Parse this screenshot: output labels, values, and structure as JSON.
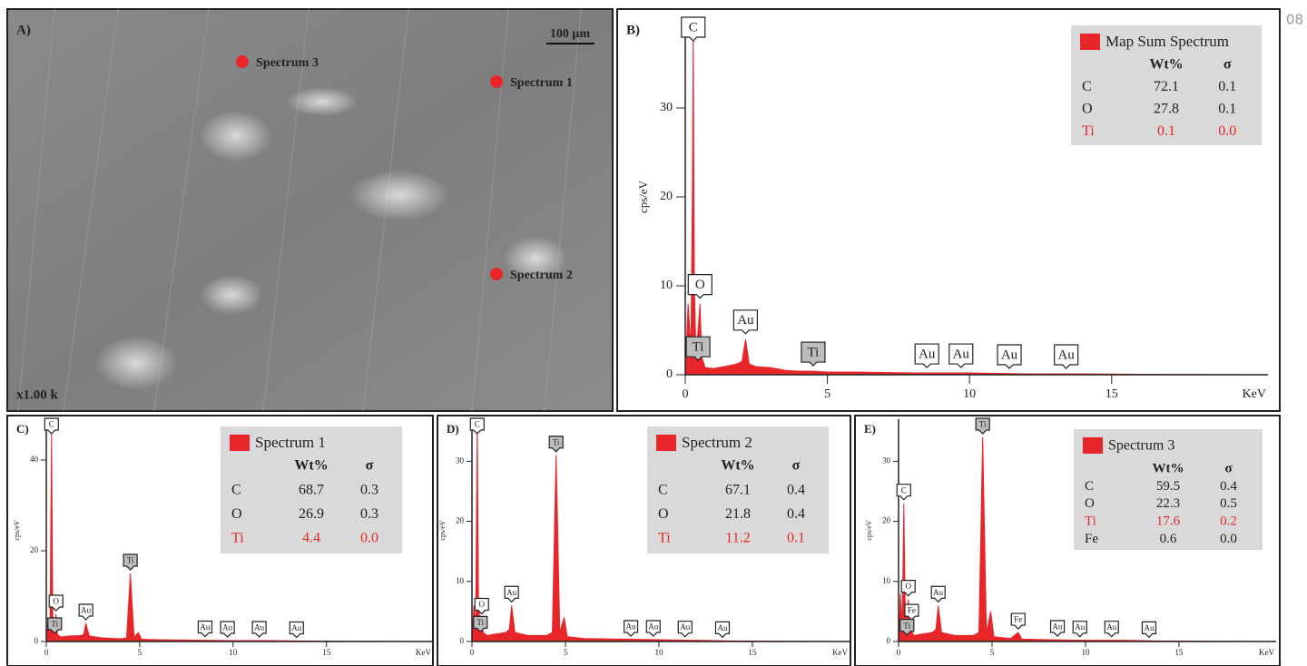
{
  "page_number": "| 08",
  "sem_image": {
    "label": "A)",
    "scale_bar": "100 µm",
    "magnification": "x1.00 k",
    "points": [
      "Spectrum 3",
      "Spectrum 1",
      "Spectrum 2"
    ]
  },
  "chart_data": [
    {
      "type": "area",
      "panel_label": "B)",
      "y_label": "cps/eV",
      "x_label": "KeV",
      "x": [
        0,
        0.1,
        0.2,
        0.25,
        0.28,
        0.32,
        0.38,
        0.45,
        0.52,
        0.58,
        0.7,
        1.0,
        1.5,
        1.8,
        2.0,
        2.12,
        2.25,
        2.5,
        3.0,
        3.5,
        4.0,
        4.5,
        5,
        6,
        8,
        10,
        12,
        14,
        16,
        18,
        20
      ],
      "series": [
        {
          "name": "Map Sum Spectrum",
          "color": "#e8262a",
          "values": [
            0,
            8,
            3,
            20,
            38,
            10,
            2,
            5,
            8,
            2,
            0.8,
            0.7,
            1.0,
            1.2,
            1.5,
            4,
            1.2,
            0.9,
            0.8,
            0.5,
            0.4,
            0.4,
            0.3,
            0.3,
            0.2,
            0.2,
            0.1,
            0.1,
            0.05,
            0.02,
            0
          ]
        }
      ],
      "xlim": [
        0,
        20.5
      ],
      "ylim": [
        0,
        40
      ],
      "xticks": [
        0,
        5,
        10,
        15
      ],
      "yticks": [
        0,
        10,
        20,
        30
      ],
      "annotations": [
        {
          "text": "C",
          "x": 0.28,
          "y": 38,
          "fill": "#ffffff"
        },
        {
          "text": "O",
          "x": 0.52,
          "y": 8,
          "fill": "#ffffff"
        },
        {
          "text": "Ti",
          "x": 0.45,
          "y": 1,
          "fill": "#bdbdbd"
        },
        {
          "text": "Au",
          "x": 2.12,
          "y": 4,
          "fill": "#ffffff"
        },
        {
          "text": "Ti",
          "x": 4.5,
          "y": 0.4,
          "fill": "#bdbdbd"
        },
        {
          "text": "Au",
          "x": 8.5,
          "y": 0.2,
          "fill": "#ffffff"
        },
        {
          "text": "Au",
          "x": 9.7,
          "y": 0.2,
          "fill": "#ffffff"
        },
        {
          "text": "Au",
          "x": 11.4,
          "y": 0.1,
          "fill": "#ffffff"
        },
        {
          "text": "Au",
          "x": 13.4,
          "y": 0.1,
          "fill": "#ffffff"
        }
      ],
      "table": {
        "columns": [
          "",
          "Wt%",
          "σ"
        ],
        "rows": [
          {
            "cells": [
              "C",
              "72.1",
              "0.1"
            ],
            "color": "#222222"
          },
          {
            "cells": [
              "O",
              "27.8",
              "0.1"
            ],
            "color": "#222222"
          },
          {
            "cells": [
              "Ti",
              "0.1",
              "0.0"
            ],
            "color": "#e8262a"
          }
        ]
      }
    },
    {
      "type": "area",
      "panel_label": "C)",
      "y_label": "cps/eV",
      "x_label": "KeV",
      "x": [
        0,
        0.1,
        0.2,
        0.28,
        0.35,
        0.45,
        0.52,
        0.6,
        0.8,
        1.2,
        1.8,
        2.0,
        2.12,
        2.3,
        3,
        4,
        4.3,
        4.5,
        4.7,
        4.93,
        5.1,
        6,
        8,
        10,
        12,
        14,
        16,
        18,
        20
      ],
      "series": [
        {
          "name": "Spectrum 1",
          "color": "#e8262a",
          "values": [
            0,
            5,
            2,
            46,
            5,
            3,
            6,
            1.5,
            1,
            1.2,
            1.3,
            1.5,
            4,
            1.2,
            0.8,
            0.6,
            0.8,
            15,
            0.9,
            2,
            0.5,
            0.4,
            0.3,
            0.2,
            0.2,
            0.1,
            0.05,
            0.02,
            0
          ]
        }
      ],
      "xlim": [
        0,
        20.7
      ],
      "ylim": [
        0,
        49
      ],
      "xticks": [
        0,
        5,
        10,
        15
      ],
      "yticks": [
        0,
        20,
        40
      ],
      "annotations": [
        {
          "text": "C",
          "x": 0.28,
          "y": 46,
          "fill": "#ffffff"
        },
        {
          "text": "O",
          "x": 0.52,
          "y": 6,
          "fill": "#ffffff"
        },
        {
          "text": "Ti",
          "x": 0.45,
          "y": 1,
          "fill": "#bdbdbd"
        },
        {
          "text": "Au",
          "x": 2.12,
          "y": 4,
          "fill": "#ffffff"
        },
        {
          "text": "Ti",
          "x": 4.5,
          "y": 15,
          "fill": "#bdbdbd"
        },
        {
          "text": "Au",
          "x": 8.5,
          "y": 0.3,
          "fill": "#ffffff"
        },
        {
          "text": "Au",
          "x": 9.7,
          "y": 0.2,
          "fill": "#ffffff"
        },
        {
          "text": "Au",
          "x": 11.4,
          "y": 0.2,
          "fill": "#ffffff"
        },
        {
          "text": "Au",
          "x": 13.4,
          "y": 0.1,
          "fill": "#ffffff"
        }
      ],
      "table": {
        "columns": [
          "",
          "Wt%",
          "σ"
        ],
        "rows": [
          {
            "cells": [
              "C",
              "68.7",
              "0.3"
            ],
            "color": "#222222"
          },
          {
            "cells": [
              "O",
              "26.9",
              "0.3"
            ],
            "color": "#222222"
          },
          {
            "cells": [
              "Ti",
              "4.4",
              "0.0"
            ],
            "color": "#e8262a"
          }
        ]
      }
    },
    {
      "type": "area",
      "panel_label": "D)",
      "y_label": "cps/eV",
      "x_label": "KeV",
      "x": [
        0,
        0.1,
        0.2,
        0.28,
        0.35,
        0.45,
        0.52,
        0.6,
        0.8,
        1.2,
        1.8,
        2.0,
        2.12,
        2.3,
        3,
        4,
        4.3,
        4.5,
        4.7,
        4.93,
        5.1,
        6,
        8,
        10,
        12,
        14,
        16,
        18,
        20
      ],
      "series": [
        {
          "name": "Spectrum 2",
          "color": "#e8262a",
          "values": [
            0,
            6,
            3,
            36,
            6,
            3,
            4,
            1.5,
            1,
            1.2,
            1.5,
            2,
            6,
            1.5,
            1,
            1,
            1.5,
            31,
            1.5,
            4,
            0.8,
            0.5,
            0.4,
            0.3,
            0.2,
            0.1,
            0.05,
            0.02,
            0
          ]
        }
      ],
      "xlim": [
        0,
        20.2
      ],
      "ylim": [
        0,
        37
      ],
      "xticks": [
        0,
        5,
        10,
        15
      ],
      "yticks": [
        0,
        10,
        20,
        30
      ],
      "annotations": [
        {
          "text": "C",
          "x": 0.28,
          "y": 36,
          "fill": "#ffffff"
        },
        {
          "text": "O",
          "x": 0.52,
          "y": 4,
          "fill": "#ffffff"
        },
        {
          "text": "Ti",
          "x": 0.45,
          "y": 1,
          "fill": "#bdbdbd"
        },
        {
          "text": "Au",
          "x": 2.12,
          "y": 6,
          "fill": "#ffffff"
        },
        {
          "text": "Ti",
          "x": 4.5,
          "y": 31,
          "fill": "#bdbdbd"
        },
        {
          "text": "Au",
          "x": 8.5,
          "y": 0.3,
          "fill": "#ffffff"
        },
        {
          "text": "Au",
          "x": 9.7,
          "y": 0.3,
          "fill": "#ffffff"
        },
        {
          "text": "Au",
          "x": 11.4,
          "y": 0.2,
          "fill": "#ffffff"
        },
        {
          "text": "Au",
          "x": 13.4,
          "y": 0.1,
          "fill": "#ffffff"
        }
      ],
      "table": {
        "columns": [
          "",
          "Wt%",
          "σ"
        ],
        "rows": [
          {
            "cells": [
              "C",
              "67.1",
              "0.4"
            ],
            "color": "#222222"
          },
          {
            "cells": [
              "O",
              "21.8",
              "0.4"
            ],
            "color": "#222222"
          },
          {
            "cells": [
              "Ti",
              "11.2",
              "0.1"
            ],
            "color": "#e8262a"
          }
        ]
      }
    },
    {
      "type": "area",
      "panel_label": "E)",
      "y_label": "cps/eV",
      "x_label": "KeV",
      "x": [
        0,
        0.1,
        0.2,
        0.28,
        0.35,
        0.45,
        0.52,
        0.6,
        0.7,
        0.8,
        1.2,
        1.8,
        2.0,
        2.12,
        2.3,
        3,
        4,
        4.3,
        4.5,
        4.7,
        4.93,
        5.1,
        6,
        6.4,
        6.6,
        8,
        10,
        12,
        14,
        16,
        18,
        20
      ],
      "series": [
        {
          "name": "Spectrum 3",
          "color": "#e8262a",
          "values": [
            0,
            8,
            3,
            23,
            7,
            3,
            7,
            1.5,
            2,
            1,
            1.2,
            1.5,
            2,
            6,
            1.5,
            1,
            1,
            1.5,
            34,
            1.5,
            5,
            0.8,
            0.5,
            1.5,
            0.4,
            0.3,
            0.2,
            0.2,
            0.1,
            0.05,
            0.02,
            0
          ]
        }
      ],
      "xlim": [
        0,
        20.2
      ],
      "ylim": [
        0,
        37
      ],
      "xticks": [
        0,
        5,
        10,
        15
      ],
      "yticks": [
        0,
        10,
        20,
        30
      ],
      "annotations": [
        {
          "text": "C",
          "x": 0.28,
          "y": 23,
          "fill": "#ffffff"
        },
        {
          "text": "O",
          "x": 0.52,
          "y": 7,
          "fill": "#ffffff"
        },
        {
          "text": "Fe",
          "x": 0.7,
          "y": 3,
          "fill": "#ffffff"
        },
        {
          "text": "Ti",
          "x": 0.45,
          "y": 0.5,
          "fill": "#bdbdbd"
        },
        {
          "text": "Au",
          "x": 2.12,
          "y": 6,
          "fill": "#ffffff"
        },
        {
          "text": "Ti",
          "x": 4.5,
          "y": 34,
          "fill": "#bdbdbd"
        },
        {
          "text": "Fe",
          "x": 6.4,
          "y": 1.5,
          "fill": "#ffffff"
        },
        {
          "text": "Au",
          "x": 8.5,
          "y": 0.3,
          "fill": "#ffffff"
        },
        {
          "text": "Au",
          "x": 9.7,
          "y": 0.2,
          "fill": "#ffffff"
        },
        {
          "text": "Au",
          "x": 11.4,
          "y": 0.2,
          "fill": "#ffffff"
        },
        {
          "text": "Au",
          "x": 13.4,
          "y": 0.1,
          "fill": "#ffffff"
        }
      ],
      "table": {
        "columns": [
          "",
          "Wt%",
          "σ"
        ],
        "rows": [
          {
            "cells": [
              "C",
              "59.5",
              "0.4"
            ],
            "color": "#222222"
          },
          {
            "cells": [
              "O",
              "22.3",
              "0.5"
            ],
            "color": "#222222"
          },
          {
            "cells": [
              "Ti",
              "17.6",
              "0.2"
            ],
            "color": "#e8262a"
          },
          {
            "cells": [
              "Fe",
              "0.6",
              "0.0"
            ],
            "color": "#222222"
          }
        ]
      }
    }
  ]
}
